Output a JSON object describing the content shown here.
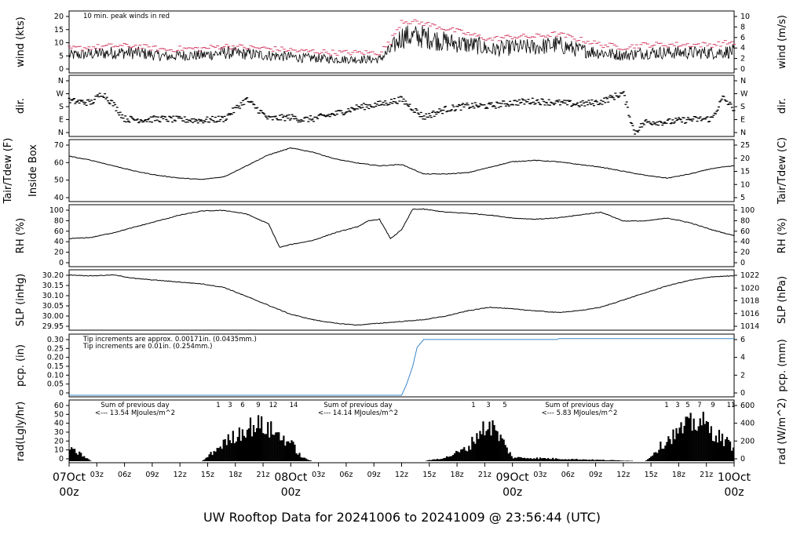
{
  "footer": {
    "title": "UW Rooftop Data for 20241006  to  20241009 @ 23:56:44  (UTC)"
  },
  "colors": {
    "accent": "#d6446a",
    "blue": "#3a86c9",
    "purple": "#8a2be2"
  },
  "chart_data": {
    "type": "line",
    "x_axis": {
      "hour_ticks": [
        "03z",
        "06z",
        "09z",
        "12z",
        "15z",
        "18z",
        "21z",
        "03z",
        "06z",
        "09z",
        "12z",
        "15z",
        "18z",
        "21z",
        "03z",
        "06z",
        "09z",
        "12z",
        "15z",
        "18z",
        "21z"
      ],
      "day_labels": [
        {
          "date": "07Oct",
          "time": "00z"
        },
        {
          "date": "08Oct",
          "time": "00z"
        },
        {
          "date": "09Oct",
          "time": "00z"
        },
        {
          "date": "10Oct",
          "time": "00z"
        }
      ]
    },
    "panels": [
      {
        "id": "wind",
        "left_label": "wind (kts)",
        "right_label": "wind (m/s)",
        "left_ticks": [
          "0",
          "5",
          "10",
          "15",
          "20"
        ],
        "right_ticks": [
          "0",
          "2",
          "4",
          "6",
          "8",
          "10"
        ],
        "annotation": "10 min. peak winds in red",
        "ylim": [
          0,
          22
        ],
        "series": [
          {
            "name": "wind",
            "kind": "noise",
            "x": [
              0,
              0.1,
              0.2,
              0.3,
              0.35,
              0.4,
              0.45,
              0.5,
              0.55,
              0.6,
              0.7,
              0.8,
              0.9,
              1.0,
              1.05,
              1.1,
              1.2,
              1.3,
              1.4,
              1.45,
              1.5,
              1.6,
              1.7,
              1.8,
              1.85,
              1.9,
              2.0,
              2.1,
              2.2,
              2.3,
              2.4,
              2.5,
              2.6,
              2.7,
              2.8,
              2.9,
              3.0
            ],
            "y": [
              6,
              6.5,
              7,
              7,
              6.5,
              6,
              5.5,
              6,
              6,
              6,
              7,
              6.5,
              6,
              5.5,
              5,
              5,
              4.5,
              4.5,
              4.5,
              8,
              13,
              13,
              11,
              10,
              9.5,
              8,
              9,
              9,
              10,
              8,
              7,
              6,
              7,
              7,
              7,
              7,
              7.5
            ]
          },
          {
            "name": "10 min. peak winds",
            "kind": "peaks",
            "color": "#d6446a",
            "x": [
              0,
              0.1,
              0.2,
              0.3,
              0.35,
              0.4,
              0.45,
              0.5,
              0.55,
              0.6,
              0.7,
              0.8,
              0.9,
              1.0,
              1.05,
              1.1,
              1.2,
              1.3,
              1.4,
              1.45,
              1.5,
              1.6,
              1.7,
              1.8,
              1.85,
              1.9,
              2.0,
              2.1,
              2.2,
              2.3,
              2.4,
              2.5,
              2.6,
              2.7,
              2.8,
              2.9,
              3.0
            ],
            "y": [
              8.5,
              9,
              9.5,
              9.5,
              9,
              8.5,
              8,
              8.5,
              8.5,
              8.5,
              9.5,
              9,
              8.5,
              8,
              7.5,
              7.5,
              7,
              7,
              7,
              11,
              19,
              18,
              16,
              14,
              13,
              12,
              13,
              13,
              14,
              12,
              10,
              9,
              10,
              10,
              10,
              10,
              11
            ]
          }
        ]
      },
      {
        "id": "dir",
        "left_label": "dir.",
        "right_label": "dir.",
        "left_ticks": [
          "N",
          "E",
          "S",
          "W",
          "N"
        ],
        "right_ticks": [
          "N",
          "E",
          "S",
          "W",
          "N"
        ],
        "ylim": [
          0,
          360
        ],
        "series": [
          {
            "name": "direction",
            "kind": "dots",
            "x": [
              0,
              0.1,
              0.15,
              0.2,
              0.25,
              0.3,
              0.35,
              0.4,
              0.5,
              0.6,
              0.7,
              0.8,
              0.9,
              1.0,
              1.05,
              1.1,
              1.2,
              1.3,
              1.4,
              1.5,
              1.6,
              1.7,
              1.8,
              1.9,
              2.0,
              2.1,
              2.2,
              2.3,
              2.4,
              2.5,
              2.55,
              2.6,
              2.7,
              2.8,
              2.9,
              2.95,
              3.0
            ],
            "y": [
              210,
              200,
              260,
              190,
              100,
              95,
              95,
              100,
              95,
              90,
              100,
              220,
              100,
              110,
              95,
              100,
              130,
              170,
              190,
              220,
              110,
              160,
              180,
              180,
              200,
              210,
              200,
              190,
              205,
              260,
              15,
              80,
              80,
              95,
              100,
              230,
              160
            ]
          }
        ]
      },
      {
        "id": "temp",
        "left_label": "Inside Box",
        "left_label2": "Tair/Tdew (F)",
        "right_label": "Tair/Tdew (C)",
        "left_ticks": [
          "40",
          "50",
          "60",
          "70"
        ],
        "right_ticks": [
          "5",
          "10",
          "15",
          "20",
          "25"
        ],
        "ylim": [
          37,
          80
        ],
        "series": [
          {
            "name": "Tair",
            "kind": "line",
            "x": [
              0,
              0.1,
              0.2,
              0.3,
              0.4,
              0.5,
              0.6,
              0.7,
              0.8,
              0.9,
              1.0,
              1.1,
              1.2,
              1.3,
              1.4,
              1.5,
              1.6,
              1.7,
              1.8,
              1.9,
              2.0,
              2.1,
              2.2,
              2.3,
              2.4,
              2.5,
              2.6,
              2.7,
              2.8,
              2.9,
              3.0
            ],
            "y": [
              69,
              66,
              62,
              58,
              55,
              53,
              52,
              54,
              62,
              70,
              75,
              72,
              67,
              64,
              62,
              63,
              56,
              56,
              57,
              61,
              65,
              66,
              65,
              63,
              61,
              58,
              55,
              53,
              56,
              60,
              62
            ]
          }
        ]
      },
      {
        "id": "rh",
        "left_label": "RH (%)",
        "right_label": "RH (%)",
        "left_ticks": [
          "0",
          "20",
          "40",
          "60",
          "80",
          "100"
        ],
        "right_ticks": [
          "0",
          "20",
          "40",
          "60",
          "80",
          "100"
        ],
        "ylim": [
          0,
          100
        ],
        "series": [
          {
            "name": "RH",
            "kind": "line",
            "x": [
              0,
              0.1,
              0.2,
              0.3,
              0.4,
              0.5,
              0.6,
              0.7,
              0.8,
              0.9,
              0.95,
              1.0,
              1.1,
              1.2,
              1.3,
              1.35,
              1.4,
              1.45,
              1.5,
              1.55,
              1.6,
              1.7,
              1.8,
              1.9,
              2.0,
              2.1,
              2.2,
              2.3,
              2.4,
              2.5,
              2.6,
              2.7,
              2.8,
              2.9,
              3.0
            ],
            "y": [
              45,
              47,
              55,
              65,
              75,
              85,
              92,
              93,
              87,
              70,
              30,
              35,
              42,
              55,
              65,
              75,
              78,
              45,
              60,
              95,
              95,
              90,
              88,
              85,
              80,
              78,
              80,
              85,
              90,
              75,
              75,
              80,
              72,
              60,
              50
            ]
          }
        ]
      },
      {
        "id": "slp",
        "left_label": "SLP (inHg)",
        "right_label": "SLP (hPa)",
        "left_ticks": [
          "29.95",
          "30.00",
          "30.05",
          "30.10",
          "30.15",
          "30.20"
        ],
        "right_ticks": [
          "1014",
          "1016",
          "1018",
          "1020",
          "1022"
        ],
        "ylim": [
          29.91,
          30.23
        ],
        "series": [
          {
            "name": "SLP",
            "kind": "line",
            "x": [
              0,
              0.1,
              0.2,
              0.3,
              0.4,
              0.5,
              0.6,
              0.7,
              0.8,
              0.9,
              1.0,
              1.1,
              1.2,
              1.3,
              1.4,
              1.5,
              1.6,
              1.7,
              1.8,
              1.9,
              2.0,
              2.1,
              2.2,
              2.3,
              2.4,
              2.5,
              2.6,
              2.7,
              2.8,
              2.9,
              3.0
            ],
            "y": [
              30.21,
              30.205,
              30.21,
              30.19,
              30.18,
              30.17,
              30.16,
              30.14,
              30.09,
              30.04,
              29.99,
              29.96,
              29.94,
              29.93,
              29.94,
              29.95,
              29.96,
              29.98,
              30.01,
              30.03,
              30.02,
              30.01,
              30.0,
              30.01,
              30.03,
              30.07,
              30.11,
              30.15,
              30.18,
              30.2,
              30.205
            ]
          }
        ]
      },
      {
        "id": "pcp",
        "left_label": "pcp. (in)",
        "right_label": "pcp. (mm)",
        "left_ticks": [
          "0",
          "0.05",
          "0.10",
          "0.15",
          "0.20",
          "0.25",
          "0.30"
        ],
        "right_ticks": [
          "0",
          "2",
          "4",
          "6"
        ],
        "annotations": [
          {
            "text": "Tip increments are approx. 0.00171in. (0.0435mm.)",
            "color": "#d6446a"
          },
          {
            "text": "Tip increments are 0.01in. (0.254mm.)",
            "color": "#3a86c9"
          }
        ],
        "ylim": [
          0,
          0.31
        ],
        "series": [
          {
            "name": "pcp",
            "kind": "line",
            "color": "#3a86c9",
            "x": [
              0,
              1.5,
              1.52,
              1.55,
              1.57,
              1.6,
              2.0,
              2.2,
              2.21,
              3.0
            ],
            "y": [
              0,
              0,
              0.05,
              0.15,
              0.25,
              0.29,
              0.29,
              0.29,
              0.295,
              0.295
            ]
          }
        ]
      },
      {
        "id": "rad",
        "left_label": "rad(Lgly/hr)",
        "right_label": "rad (W/m^2)",
        "left_ticks": [
          "0",
          "10",
          "20",
          "30",
          "40",
          "50",
          "60"
        ],
        "right_ticks": [
          "0",
          "200",
          "400",
          "600"
        ],
        "ylim": [
          0,
          65
        ],
        "day_hours": [
          "1",
          "3",
          "6",
          "9",
          "12",
          "14",
          "1",
          "3",
          "5",
          "1",
          "3",
          "5",
          "7",
          "9",
          "11"
        ],
        "day_summaries": [
          {
            "heading": "Sum of previous day",
            "value": "<--- 13.54 MJoules/m^2"
          },
          {
            "heading": "Sum of previous day",
            "value": "<--- 14.14 MJoules/m^2"
          },
          {
            "heading": "Sum of previous day",
            "value": "<--- 5.83 MJoules/m^2"
          }
        ],
        "series": [
          {
            "name": "solar radiation",
            "kind": "bars",
            "x": [
              0,
              0.05,
              0.1,
              0.6,
              0.7,
              0.8,
              0.85,
              0.9,
              1.0,
              1.05,
              1.1,
              1.6,
              1.7,
              1.8,
              1.85,
              1.9,
              1.95,
              2.0,
              2.6,
              2.7,
              2.8,
              2.85,
              2.9,
              2.95,
              3.0
            ],
            "y": [
              16,
              10,
              0,
              0,
              25,
              45,
              50,
              44,
              25,
              5,
              0,
              0,
              5,
              18,
              40,
              50,
              30,
              5,
              0,
              30,
              50,
              55,
              40,
              30,
              18
            ]
          }
        ]
      }
    ]
  }
}
